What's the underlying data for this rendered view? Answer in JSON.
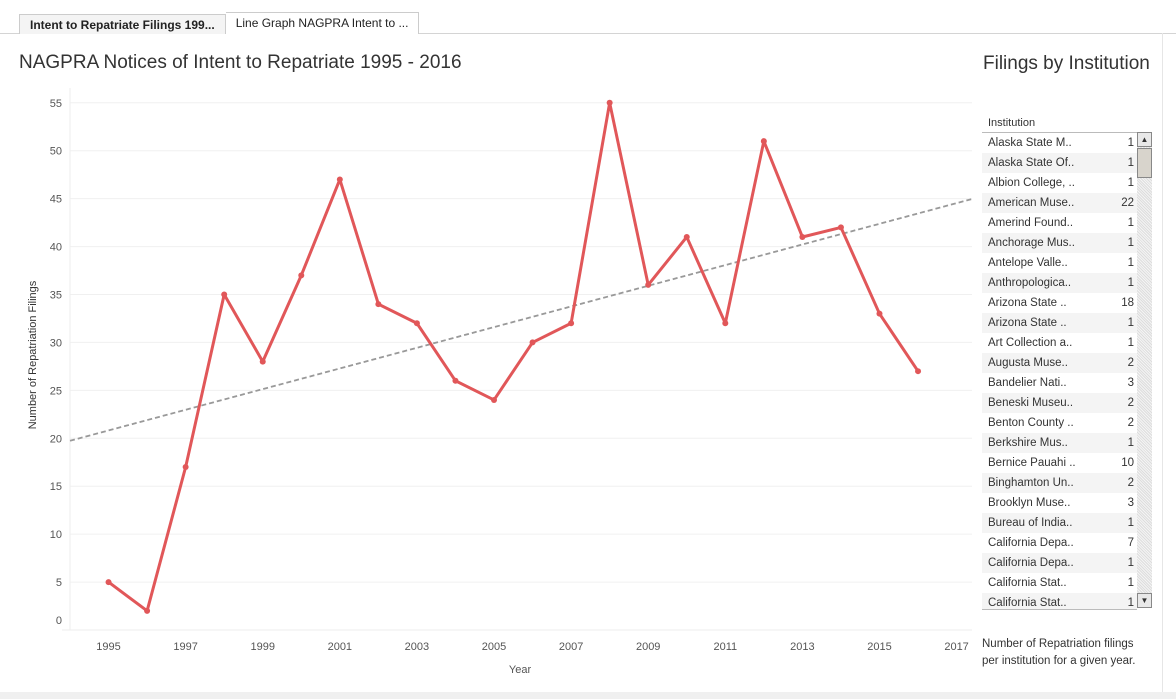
{
  "tabs": [
    {
      "label": "Intent to Repatriate Filings 199..."
    },
    {
      "label": "Line Graph NAGPRA Intent to ..."
    }
  ],
  "colors": {
    "line": "#e15759",
    "trend": "#999999",
    "grid": "#f0f0f0"
  },
  "chart_data": {
    "type": "line",
    "title": "NAGPRA Notices of Intent to Repatriate 1995 - 2016",
    "xlabel": "Year",
    "ylabel": "Number of Repatriation Filings",
    "x": [
      1995,
      1996,
      1997,
      1998,
      1999,
      2000,
      2001,
      2002,
      2003,
      2004,
      2005,
      2006,
      2007,
      2008,
      2009,
      2010,
      2011,
      2012,
      2013,
      2014,
      2015,
      2016
    ],
    "values": [
      5,
      2,
      17,
      35,
      28,
      37,
      47,
      34,
      32,
      26,
      24,
      30,
      32,
      55,
      36,
      41,
      32,
      51,
      41,
      42,
      33,
      27
    ],
    "xticks": [
      "1995",
      "1997",
      "1999",
      "2001",
      "2003",
      "2005",
      "2007",
      "2009",
      "2011",
      "2013",
      "2015",
      "2017"
    ],
    "yticks": [
      "0",
      "5",
      "10",
      "15",
      "20",
      "25",
      "30",
      "35",
      "40",
      "45",
      "50",
      "55"
    ],
    "xlim": [
      1994,
      2017.4
    ],
    "ylim": [
      0,
      55.5
    ],
    "trend_line": "linear",
    "grid": true
  },
  "panel": {
    "title": "Filings by Institution",
    "column": "Institution",
    "rows": [
      {
        "name": "Alaska State M..",
        "value": "1"
      },
      {
        "name": "Alaska State Of..",
        "value": "1"
      },
      {
        "name": "Albion College, ..",
        "value": "1"
      },
      {
        "name": "American Muse..",
        "value": "22"
      },
      {
        "name": "Amerind Found..",
        "value": "1"
      },
      {
        "name": "Anchorage Mus..",
        "value": "1"
      },
      {
        "name": "Antelope Valle..",
        "value": "1"
      },
      {
        "name": "Anthropologica..",
        "value": "1"
      },
      {
        "name": "Arizona State ..",
        "value": "18"
      },
      {
        "name": "Arizona State ..",
        "value": "1"
      },
      {
        "name": "Art Collection a..",
        "value": "1"
      },
      {
        "name": "Augusta Muse..",
        "value": "2"
      },
      {
        "name": "Bandelier Nati..",
        "value": "3"
      },
      {
        "name": "Beneski Museu..",
        "value": "2"
      },
      {
        "name": "Benton County ..",
        "value": "2"
      },
      {
        "name": "Berkshire Mus..",
        "value": "1"
      },
      {
        "name": "Bernice Pauahi ..",
        "value": "10"
      },
      {
        "name": "Binghamton Un..",
        "value": "2"
      },
      {
        "name": "Brooklyn Muse..",
        "value": "3"
      },
      {
        "name": "Bureau of India..",
        "value": "1"
      },
      {
        "name": "California Depa..",
        "value": "7"
      },
      {
        "name": "California Depa..",
        "value": "1"
      },
      {
        "name": "California Stat..",
        "value": "1"
      },
      {
        "name": "California Stat..",
        "value": "1"
      }
    ],
    "caption": "Number of Repatriation filings per institution for a given year."
  }
}
